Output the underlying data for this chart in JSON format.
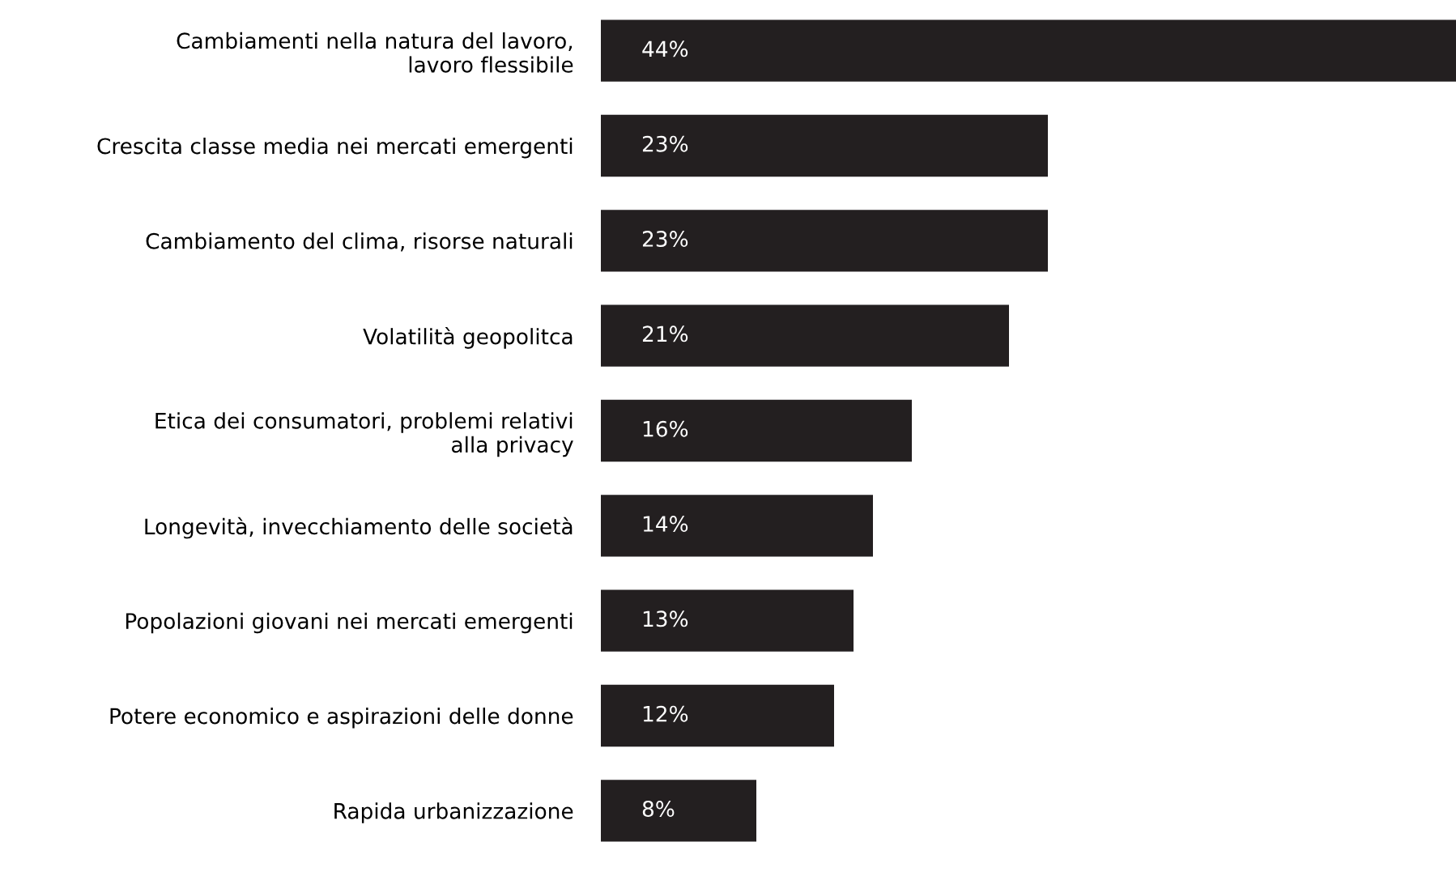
{
  "chart_data": {
    "type": "bar",
    "orientation": "horizontal",
    "categories": [
      "Cambiamenti nella natura del lavoro,\nlavoro flessibile",
      "Crescita classe media nei mercati emergenti",
      "Cambiamento del clima, risorse naturali",
      "Volatilità geopolitca",
      "Etica dei consumatori, problemi relativi\nalla privacy",
      "Longevità, invecchiamento delle società",
      "Popolazioni giovani nei mercati emergenti",
      "Potere economico e aspirazioni delle donne",
      "Rapida urbanizzazione"
    ],
    "values": [
      44,
      23,
      23,
      21,
      16,
      14,
      13,
      12,
      8
    ],
    "value_labels": [
      "44%",
      "23%",
      "23%",
      "21%",
      "16%",
      "14%",
      "13%",
      "12%",
      "8%"
    ],
    "color": "#231f20",
    "grid": false,
    "legend": false,
    "tick_labels": "y"
  }
}
